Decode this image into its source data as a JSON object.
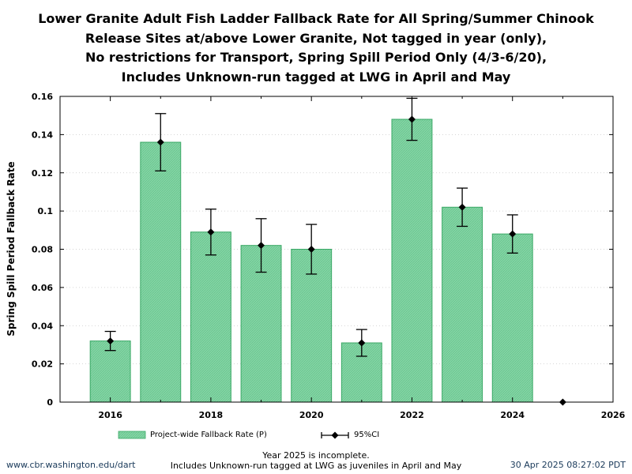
{
  "chart_data": {
    "type": "bar",
    "title_lines": [
      "Lower Granite Adult Fish Ladder Fallback Rate for All Spring/Summer Chinook",
      "Release Sites at/above Lower Granite, Not tagged in year (only),",
      "No restrictions for Transport, Spring Spill Period Only (4/3-6/20),",
      "Includes Unknown-run tagged at LWG in April and May"
    ],
    "xlabel": "",
    "ylabel": "Spring Spill Period Fallback Rate",
    "xlim": [
      2015,
      2026
    ],
    "ylim": [
      0,
      0.16
    ],
    "x_ticks": [
      2016,
      2018,
      2020,
      2022,
      2024,
      2026
    ],
    "y_ticks": [
      0,
      0.02,
      0.04,
      0.06,
      0.08,
      0.1,
      0.12,
      0.14,
      0.16
    ],
    "y_tick_labels": [
      "0",
      "0.02",
      "0.04",
      "0.06",
      "0.08",
      "0.1",
      "0.12",
      "0.14",
      "0.16"
    ],
    "grid": "horizontal dotted",
    "bar_color": "#7fd2a0",
    "bar_edge_color": "#3aa866",
    "series": [
      {
        "name": "Project-wide Fallback Rate (P)",
        "x": [
          2016,
          2017,
          2018,
          2019,
          2020,
          2021,
          2022,
          2023,
          2024
        ],
        "values": [
          0.032,
          0.136,
          0.089,
          0.082,
          0.08,
          0.031,
          0.148,
          0.102,
          0.088
        ]
      },
      {
        "name": "95%CI",
        "x": [
          2016,
          2017,
          2018,
          2019,
          2020,
          2021,
          2022,
          2023,
          2024,
          2025
        ],
        "values": [
          0.032,
          0.136,
          0.089,
          0.082,
          0.08,
          0.031,
          0.148,
          0.102,
          0.088,
          0
        ],
        "lower": [
          0.027,
          0.121,
          0.077,
          0.068,
          0.067,
          0.024,
          0.137,
          0.092,
          0.078,
          0
        ],
        "upper": [
          0.037,
          0.151,
          0.101,
          0.096,
          0.093,
          0.038,
          0.159,
          0.112,
          0.098,
          0
        ]
      }
    ],
    "legend": [
      "Project-wide Fallback Rate (P)",
      "95%CI"
    ],
    "legend_position": "bottom"
  },
  "footer": {
    "left": "www.cbr.washington.edu/dart",
    "center_line1": "Year 2025 is incomplete.",
    "center_line2": "Includes Unknown-run tagged at LWG as juveniles in April and May",
    "right": "30 Apr 2025 08:27:02 PDT"
  }
}
